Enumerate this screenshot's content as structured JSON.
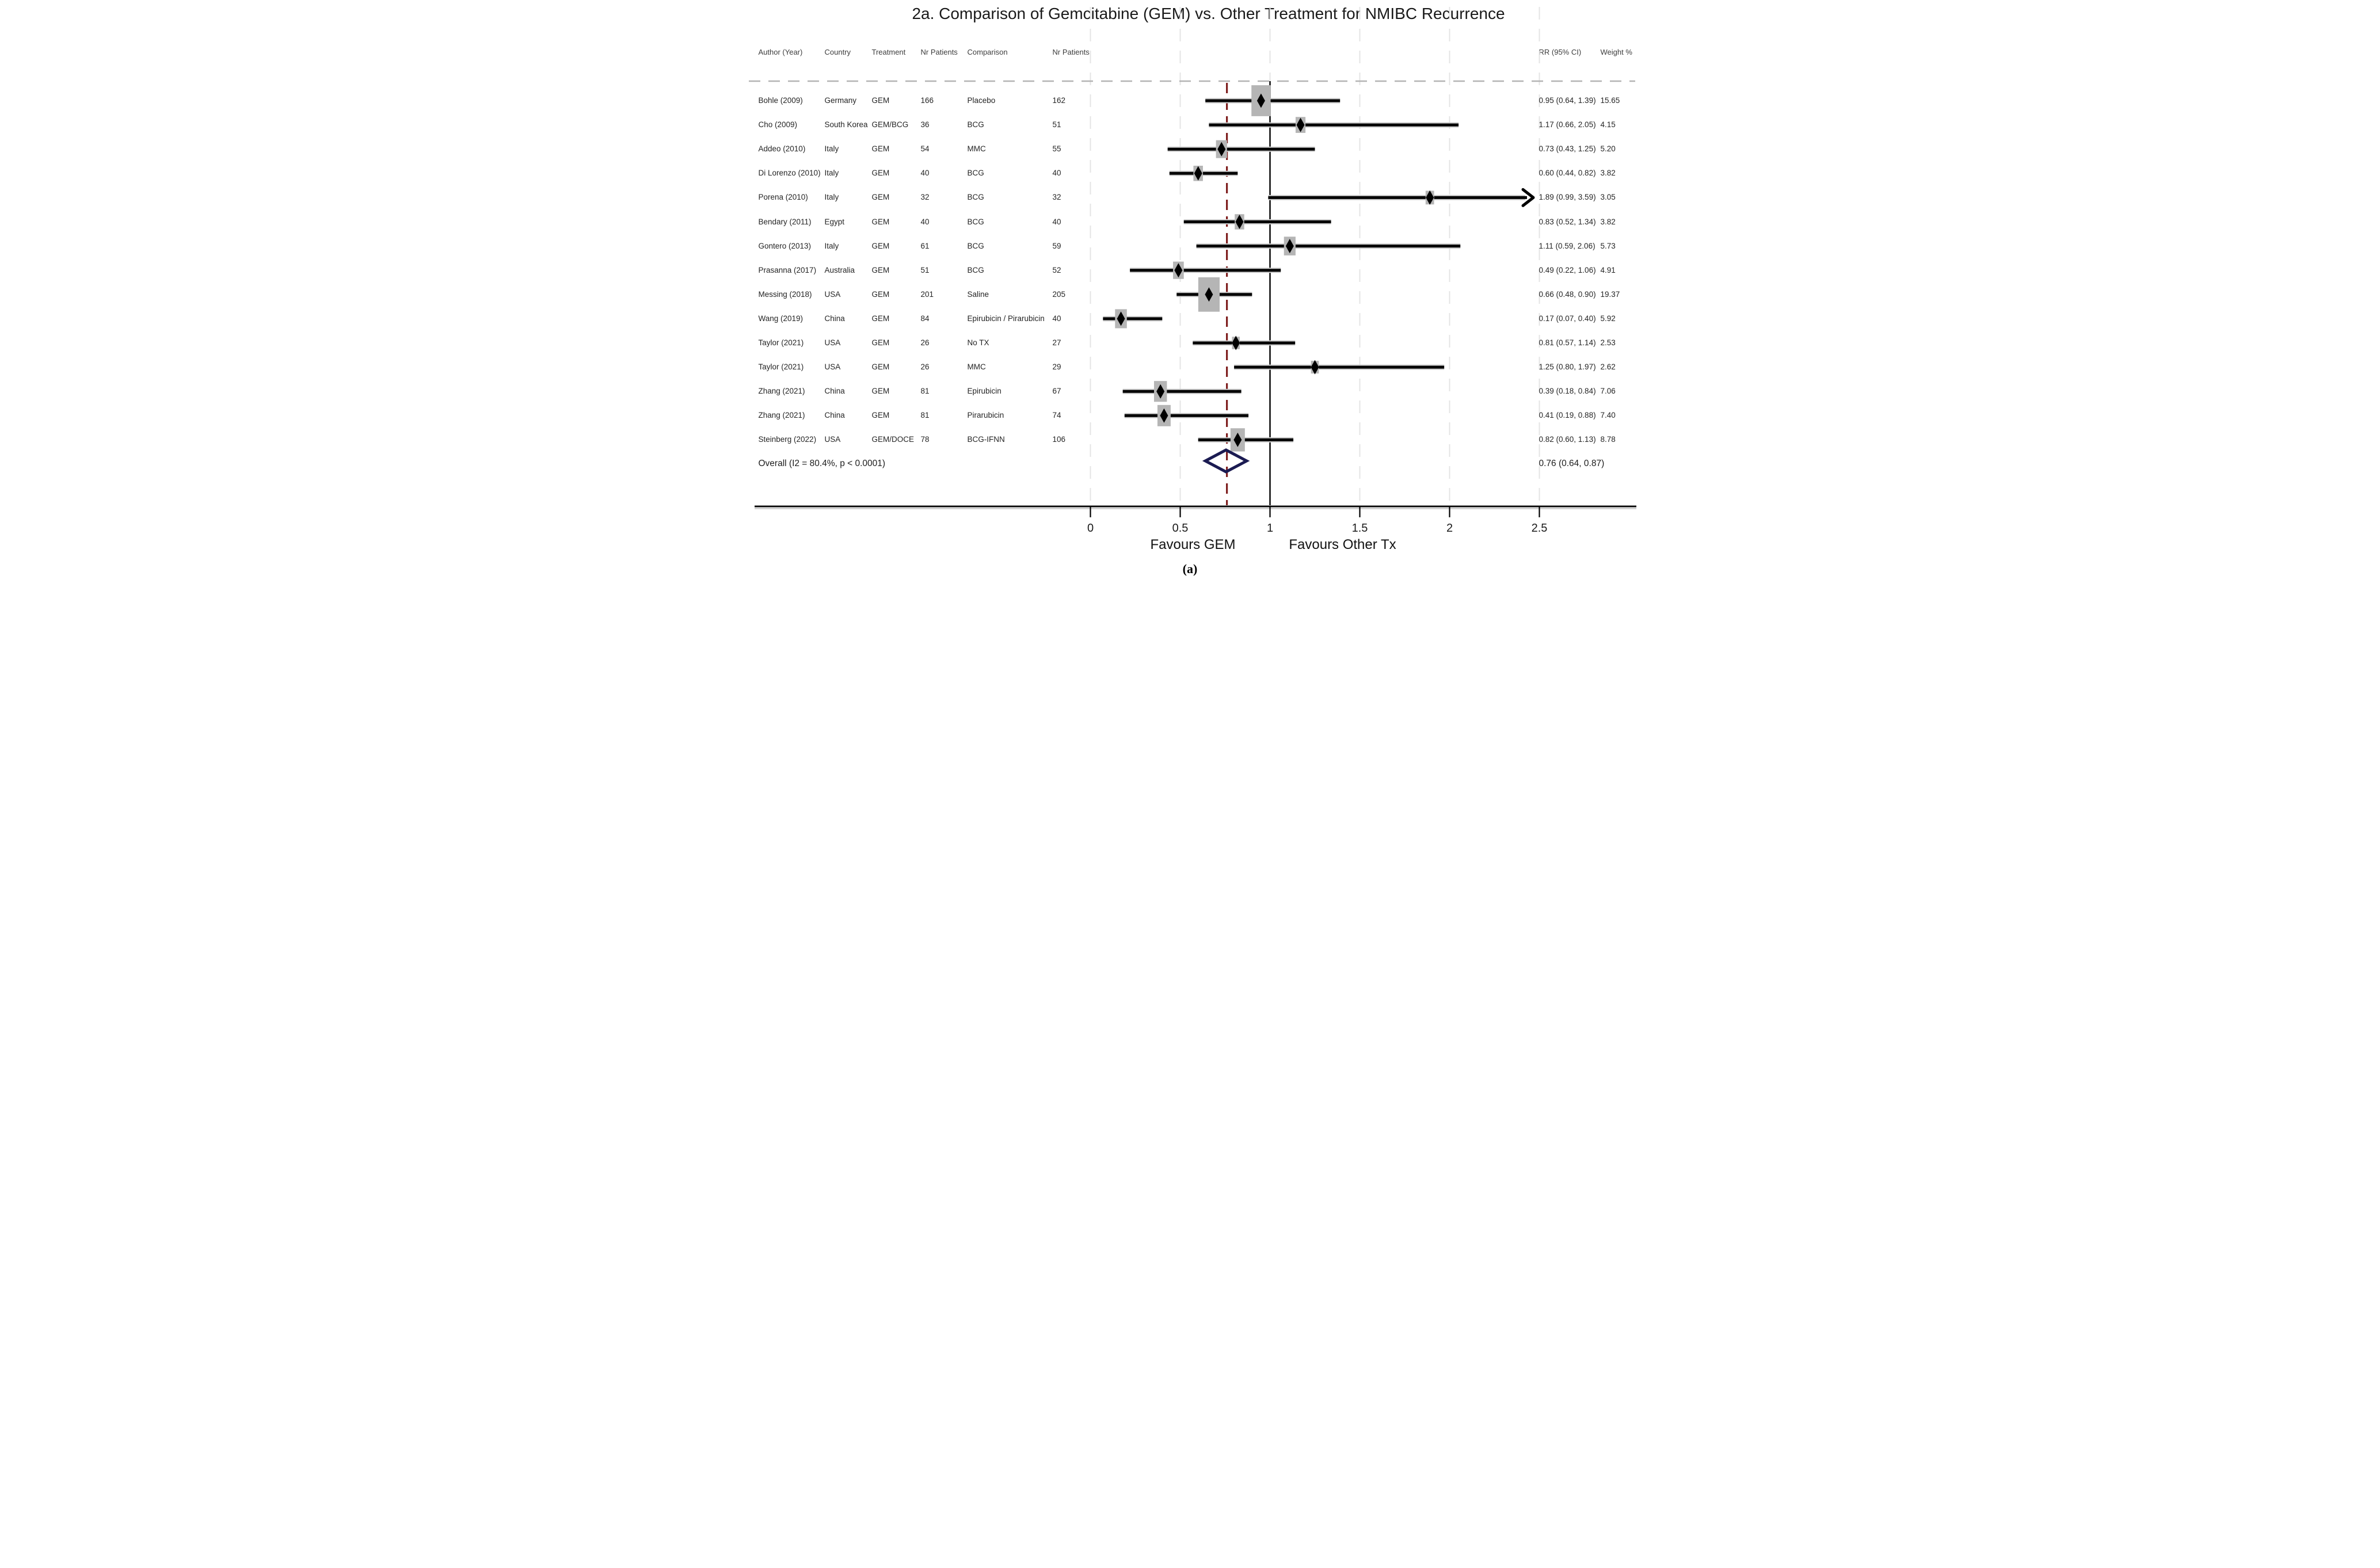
{
  "title": "2a. Comparison of Gemcitabine (GEM) vs. Other Treatment for NMIBC Recurrence",
  "caption": "(a)",
  "table": {
    "headers": {
      "author": "Author (Year)",
      "country": "Country",
      "treatment": "Treatment",
      "nr_patients": "Nr Patients",
      "comparison": "Comparison",
      "nr_patients_2": "Nr Patients",
      "rr_ci": "RR (95% CI)",
      "weight": "Weight %"
    }
  },
  "chart_data": {
    "type": "forest",
    "title": "2a. Comparison of Gemcitabine (GEM) vs. Other Treatment for NMIBC Recurrence",
    "x_axis": {
      "min": 0,
      "max": 2.5,
      "ticks": [
        0,
        0.5,
        1,
        1.5,
        2,
        2.5
      ],
      "tick_labels": [
        "0",
        "0.5",
        "1",
        "1.5",
        "2",
        "2.5"
      ],
      "reference_line": 1,
      "pooled_estimate_line": 0.76,
      "label_left": "Favours GEM",
      "label_right": "Favours Other Tx"
    },
    "grid": true,
    "legend_position": "none",
    "studies": [
      {
        "author": "Bohle (2009)",
        "country": "Germany",
        "treatment": "GEM",
        "nr_patients": "166",
        "comparison": "Placebo",
        "nr_patients_2": "162",
        "rr": 0.95,
        "ci_low": 0.64,
        "ci_high": 1.39,
        "weight": 15.65,
        "rr_ci_text": "0.95 (0.64, 1.39)",
        "weight_text": "15.65",
        "arrow": false
      },
      {
        "author": "Cho (2009)",
        "country": "South Korea",
        "treatment": "GEM/BCG",
        "nr_patients": "36",
        "comparison": "BCG",
        "nr_patients_2": "51",
        "rr": 1.17,
        "ci_low": 0.66,
        "ci_high": 2.05,
        "weight": 4.15,
        "rr_ci_text": "1.17 (0.66, 2.05)",
        "weight_text": "4.15",
        "arrow": false
      },
      {
        "author": "Addeo (2010)",
        "country": "Italy",
        "treatment": "GEM",
        "nr_patients": "54",
        "comparison": "MMC",
        "nr_patients_2": "55",
        "rr": 0.73,
        "ci_low": 0.43,
        "ci_high": 1.25,
        "weight": 5.2,
        "rr_ci_text": "0.73 (0.43, 1.25)",
        "weight_text": "5.20",
        "arrow": false
      },
      {
        "author": "Di Lorenzo (2010)",
        "country": "Italy",
        "treatment": "GEM",
        "nr_patients": "40",
        "comparison": "BCG",
        "nr_patients_2": "40",
        "rr": 0.6,
        "ci_low": 0.44,
        "ci_high": 0.82,
        "weight": 3.82,
        "rr_ci_text": "0.60 (0.44, 0.82)",
        "weight_text": "3.82",
        "arrow": false
      },
      {
        "author": "Porena (2010)",
        "country": "Italy",
        "treatment": "GEM",
        "nr_patients": "32",
        "comparison": "BCG",
        "nr_patients_2": "32",
        "rr": 1.89,
        "ci_low": 0.99,
        "ci_high": 3.59,
        "weight": 3.05,
        "rr_ci_text": "1.89 (0.99, 3.59)",
        "weight_text": "3.05",
        "arrow": true
      },
      {
        "author": "Bendary (2011)",
        "country": "Egypt",
        "treatment": "GEM",
        "nr_patients": "40",
        "comparison": "BCG",
        "nr_patients_2": "40",
        "rr": 0.83,
        "ci_low": 0.52,
        "ci_high": 1.34,
        "weight": 3.82,
        "rr_ci_text": "0.83 (0.52, 1.34)",
        "weight_text": "3.82",
        "arrow": false
      },
      {
        "author": "Gontero (2013)",
        "country": "Italy",
        "treatment": "GEM",
        "nr_patients": "61",
        "comparison": "BCG",
        "nr_patients_2": "59",
        "rr": 1.11,
        "ci_low": 0.59,
        "ci_high": 2.06,
        "weight": 5.73,
        "rr_ci_text": "1.11 (0.59, 2.06)",
        "weight_text": "5.73",
        "arrow": false
      },
      {
        "author": "Prasanna (2017)",
        "country": "Australia",
        "treatment": "GEM",
        "nr_patients": "51",
        "comparison": "BCG",
        "nr_patients_2": "52",
        "rr": 0.49,
        "ci_low": 0.22,
        "ci_high": 1.06,
        "weight": 4.91,
        "rr_ci_text": "0.49 (0.22, 1.06)",
        "weight_text": "4.91",
        "arrow": false
      },
      {
        "author": "Messing (2018)",
        "country": "USA",
        "treatment": "GEM",
        "nr_patients": "201",
        "comparison": "Saline",
        "nr_patients_2": "205",
        "rr": 0.66,
        "ci_low": 0.48,
        "ci_high": 0.9,
        "weight": 19.37,
        "rr_ci_text": "0.66 (0.48, 0.90)",
        "weight_text": "19.37",
        "arrow": false
      },
      {
        "author": "Wang (2019)",
        "country": "China",
        "treatment": "GEM",
        "nr_patients": "84",
        "comparison": "Epirubicin / Pirarubicin",
        "nr_patients_2": "40",
        "rr": 0.17,
        "ci_low": 0.07,
        "ci_high": 0.4,
        "weight": 5.92,
        "rr_ci_text": "0.17 (0.07, 0.40)",
        "weight_text": "5.92",
        "arrow": false
      },
      {
        "author": "Taylor (2021)",
        "country": "USA",
        "treatment": "GEM",
        "nr_patients": "26",
        "comparison": "No TX",
        "nr_patients_2": "27",
        "rr": 0.81,
        "ci_low": 0.57,
        "ci_high": 1.14,
        "weight": 2.53,
        "rr_ci_text": "0.81 (0.57, 1.14)",
        "weight_text": "2.53",
        "arrow": false
      },
      {
        "author": "Taylor (2021)",
        "country": "USA",
        "treatment": "GEM",
        "nr_patients": "26",
        "comparison": "MMC",
        "nr_patients_2": "29",
        "rr": 1.25,
        "ci_low": 0.8,
        "ci_high": 1.97,
        "weight": 2.62,
        "rr_ci_text": "1.25 (0.80, 1.97)",
        "weight_text": "2.62",
        "arrow": false
      },
      {
        "author": "Zhang (2021)",
        "country": "China",
        "treatment": "GEM",
        "nr_patients": "81",
        "comparison": "Epirubicin",
        "nr_patients_2": "67",
        "rr": 0.39,
        "ci_low": 0.18,
        "ci_high": 0.84,
        "weight": 7.06,
        "rr_ci_text": "0.39 (0.18, 0.84)",
        "weight_text": "7.06",
        "arrow": false
      },
      {
        "author": "Zhang (2021)",
        "country": "China",
        "treatment": "GEM",
        "nr_patients": "81",
        "comparison": "Pirarubicin",
        "nr_patients_2": "74",
        "rr": 0.41,
        "ci_low": 0.19,
        "ci_high": 0.88,
        "weight": 7.4,
        "rr_ci_text": "0.41 (0.19, 0.88)",
        "weight_text": "7.40",
        "arrow": false
      },
      {
        "author": "Steinberg (2022)",
        "country": "USA",
        "treatment": "GEM/DOCE",
        "nr_patients": "78",
        "comparison": "BCG-IFNN",
        "nr_patients_2": "106",
        "rr": 0.82,
        "ci_low": 0.6,
        "ci_high": 1.13,
        "weight": 8.78,
        "rr_ci_text": "0.82 (0.60, 1.13)",
        "weight_text": "8.78",
        "arrow": false
      }
    ],
    "overall": {
      "label": "Overall  (I2 = 80.4%, p < 0.0001)",
      "rr": 0.76,
      "ci_low": 0.64,
      "ci_high": 0.87,
      "rr_ci_text": "0.76 (0.64, 0.87)"
    }
  },
  "colors": {
    "ci_line": "#000000",
    "ci_halo": "#c9c9c9",
    "weight_box": "#b5b5b5",
    "marker": "#000000",
    "overall_diamond": "#1b1b52",
    "reference_line": "#000000",
    "pooled_line": "#7f1f1f",
    "gridline": "#e4e4e4",
    "header_rule": "#b3b3b3",
    "axis_underlay": "#d2d2d2",
    "axis": "#000000",
    "tick_text": "#1a1a1a"
  }
}
